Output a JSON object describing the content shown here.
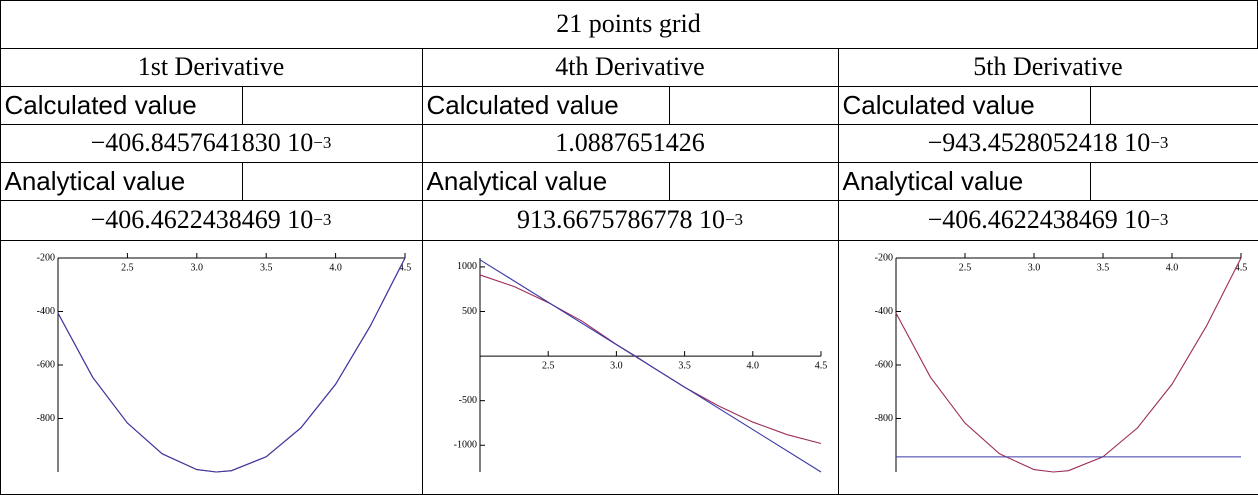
{
  "table": {
    "title": "21 points grid",
    "columns": [
      {
        "header": "1st Derivative",
        "calculated_label": "Calculated value",
        "calculated": {
          "text": "−406.8457641830 10",
          "exponent": "−3"
        },
        "analytical_label": "Analytical value",
        "analytical": {
          "text": "−406.4622438469 10",
          "exponent": "−3"
        },
        "chart": {
          "type": "line",
          "xlim": [
            2,
            4.5
          ],
          "ylim": [
            -1000,
            -200
          ],
          "xticks": [
            2.5,
            {
              "value": 3,
              "label": "3.0"
            },
            3.5,
            {
              "value": 4,
              "label": "4.0"
            },
            4.5
          ],
          "yticks": [
            -800,
            -600,
            -400,
            -200
          ],
          "series": [
            {
              "color": "#9c2c5a",
              "x": [
                2,
                2.25,
                2.5,
                2.75,
                3,
                3.14,
                3.25,
                3.5,
                3.75,
                4,
                4.25,
                4.5
              ],
              "values": [
                -406,
                -646,
                -817,
                -932,
                -991,
                -1000,
                -995,
                -943,
                -835,
                -672,
                -454,
                -200
              ]
            },
            {
              "color": "#3a3aa8",
              "x": [
                2,
                2.25,
                2.5,
                2.75,
                3,
                3.14,
                3.25,
                3.5,
                3.75,
                4,
                4.25,
                4.5
              ],
              "values": [
                -406,
                -646,
                -817,
                -932,
                -991,
                -1000,
                -995,
                -943,
                -835,
                -672,
                -454,
                -200
              ]
            }
          ]
        }
      },
      {
        "header": "4th Derivative",
        "calculated_label": "Calculated value",
        "calculated": {
          "text": "1.0887651426"
        },
        "analytical_label": "Analytical value",
        "analytical": {
          "text": "913.6675786778 10",
          "exponent": "−3"
        },
        "chart": {
          "type": "line",
          "xlim": [
            2,
            4.5
          ],
          "ylim": [
            -1300,
            1100
          ],
          "xticks": [
            2.5,
            {
              "value": 3,
              "label": "3.0"
            },
            3.5,
            {
              "value": 4,
              "label": "4.0"
            },
            4.5
          ],
          "yticks": [
            -1000,
            -500,
            500,
            1000
          ],
          "series": [
            {
              "color": "#9c2c5a",
              "x": [
                2,
                2.25,
                2.5,
                2.75,
                3,
                3.14,
                3.25,
                3.5,
                3.75,
                4,
                4.25,
                4.5
              ],
              "values": [
                910,
                780,
                600,
                390,
                130,
                0,
                -110,
                -350,
                -560,
                -740,
                -880,
                -980
              ]
            },
            {
              "color": "#3a3aa8",
              "x": [
                2,
                4.5
              ],
              "values": [
                1080,
                -1300
              ]
            }
          ]
        }
      },
      {
        "header": "5th Derivative",
        "calculated_label": "Calculated value",
        "calculated": {
          "text": "−943.4528052418 10",
          "exponent": "−3"
        },
        "analytical_label": "Analytical value",
        "analytical": {
          "text": "−406.4622438469 10",
          "exponent": "−3"
        },
        "chart": {
          "type": "line",
          "xlim": [
            2,
            4.5
          ],
          "ylim": [
            -1000,
            -200
          ],
          "xticks": [
            2.5,
            {
              "value": 3,
              "label": "3.0"
            },
            3.5,
            {
              "value": 4,
              "label": "4.0"
            },
            4.5
          ],
          "yticks": [
            -800,
            -600,
            -400,
            -200
          ],
          "series": [
            {
              "color": "#9c2c5a",
              "x": [
                2,
                2.25,
                2.5,
                2.75,
                3,
                3.14,
                3.25,
                3.5,
                3.75,
                4,
                4.25,
                4.5
              ],
              "values": [
                -406,
                -646,
                -817,
                -932,
                -991,
                -1000,
                -995,
                -943,
                -835,
                -672,
                -454,
                -200
              ]
            },
            {
              "color": "#3a3aa8",
              "x": [
                2,
                4.5
              ],
              "values": [
                -943.45,
                -943.45
              ]
            }
          ]
        }
      }
    ]
  }
}
